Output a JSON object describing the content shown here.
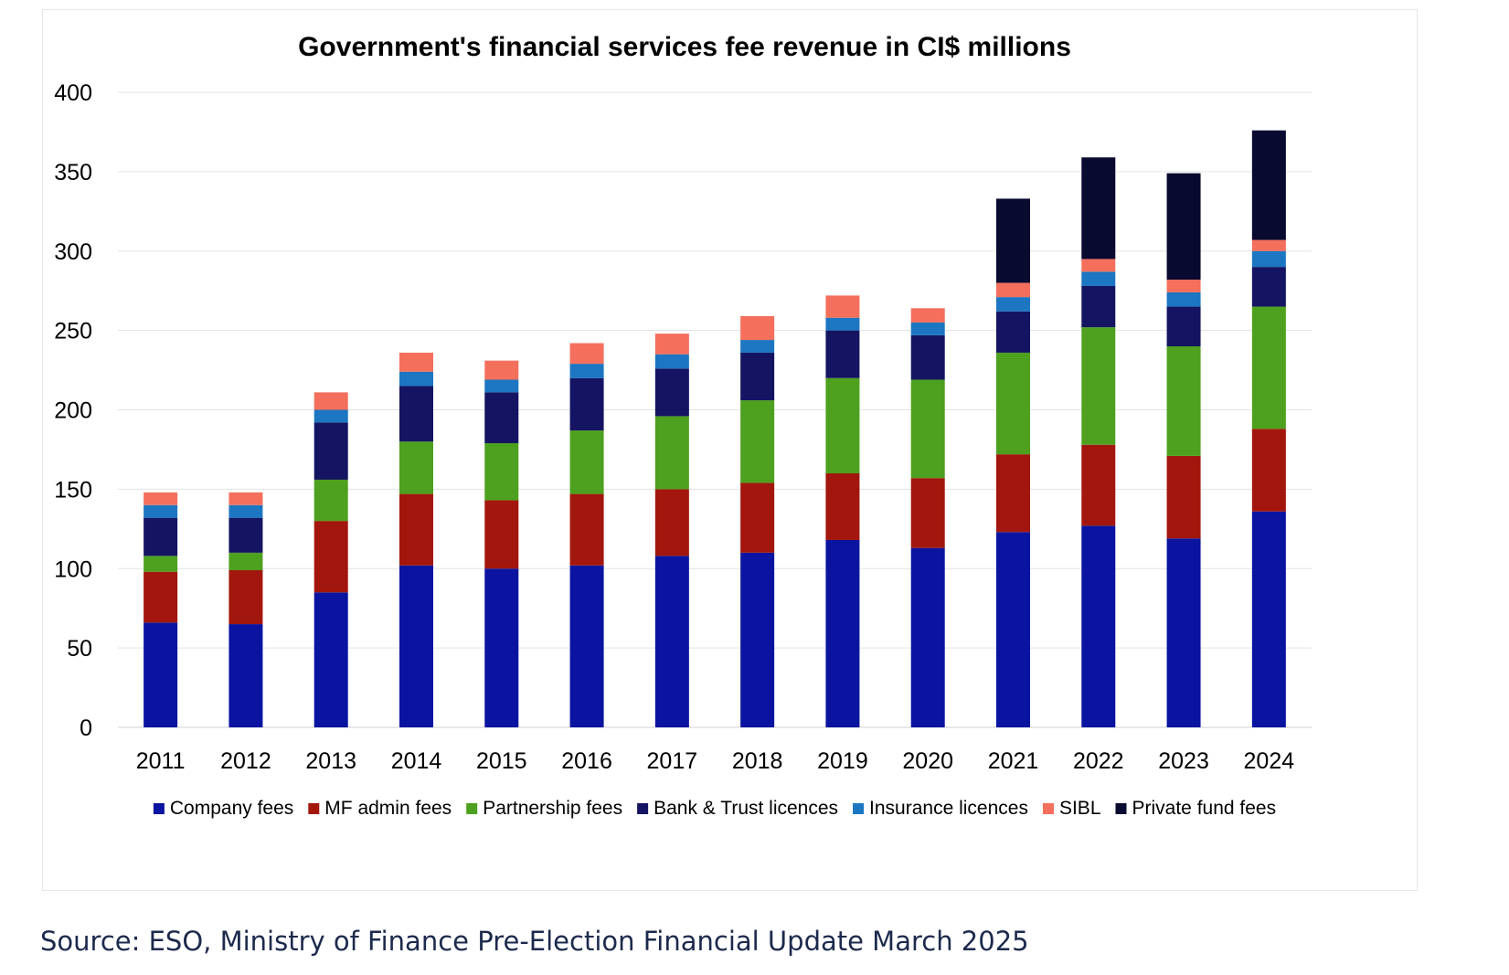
{
  "source_note": "Source: ESO, Ministry of Finance Pre-Election Financial Update March 2025",
  "chart_data": {
    "type": "bar",
    "stacked": true,
    "title": "Government's financial services fee revenue in CI$ millions",
    "xlabel": "",
    "ylabel": "",
    "ylim": [
      0,
      400
    ],
    "yticks": [
      0,
      50,
      100,
      150,
      200,
      250,
      300,
      350,
      400
    ],
    "grid": true,
    "legend_position": "bottom",
    "categories": [
      "2011",
      "2012",
      "2013",
      "2014",
      "2015",
      "2016",
      "2017",
      "2018",
      "2019",
      "2020",
      "2021",
      "2022",
      "2023",
      "2024"
    ],
    "series": [
      {
        "name": "Company fees",
        "color": "#0a14a0",
        "values": [
          66,
          65,
          85,
          102,
          100,
          102,
          108,
          110,
          118,
          113,
          123,
          127,
          119,
          136
        ]
      },
      {
        "name": "MF admin fees",
        "color": "#a3160d",
        "values": [
          32,
          34,
          45,
          45,
          43,
          45,
          42,
          44,
          42,
          44,
          49,
          51,
          52,
          52
        ]
      },
      {
        "name": "Partnership fees",
        "color": "#4da11e",
        "values": [
          10,
          11,
          26,
          33,
          36,
          40,
          46,
          52,
          60,
          62,
          64,
          74,
          69,
          77
        ]
      },
      {
        "name": "Bank & Trust licences",
        "color": "#141462",
        "values": [
          24,
          22,
          36,
          35,
          32,
          33,
          30,
          30,
          30,
          28,
          26,
          26,
          25,
          25
        ]
      },
      {
        "name": "Insurance licences",
        "color": "#1c76c2",
        "values": [
          8,
          8,
          8,
          9,
          8,
          9,
          9,
          8,
          8,
          8,
          9,
          9,
          9,
          10
        ]
      },
      {
        "name": "SIBL",
        "color": "#f46f5c",
        "values": [
          8,
          8,
          11,
          12,
          12,
          13,
          13,
          15,
          14,
          9,
          9,
          8,
          8,
          7
        ]
      },
      {
        "name": "Private fund fees",
        "color": "#080a30",
        "values": [
          0,
          0,
          0,
          0,
          0,
          0,
          0,
          0,
          0,
          0,
          53,
          64,
          67,
          69
        ]
      }
    ]
  }
}
